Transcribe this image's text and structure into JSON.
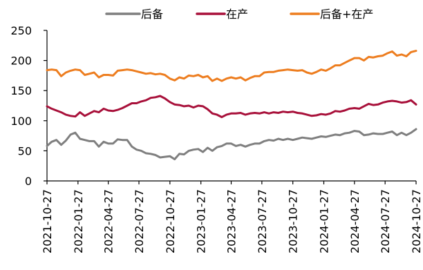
{
  "chart_data": {
    "type": "line",
    "title": "",
    "xlabel": "",
    "ylabel": "",
    "ylim": [
      0,
      250
    ],
    "yticks": [
      0,
      50,
      100,
      150,
      200,
      250
    ],
    "xlim": [
      "2021-10-27",
      "2024-10-27"
    ],
    "xticks": [
      "2021-10-27",
      "2022-01-27",
      "2022-04-27",
      "2022-07-27",
      "2022-10-27",
      "2023-01-27",
      "2023-04-27",
      "2023-07-27",
      "2023-10-27",
      "2024-01-27",
      "2024-04-27",
      "2024-07-27",
      "2024-10-27"
    ],
    "grid": false,
    "legend": "top",
    "series": [
      {
        "name": "后备",
        "color": "#7f7f7f",
        "points": [
          [
            "2021-10-27",
            58
          ],
          [
            "2021-11-10",
            65
          ],
          [
            "2021-11-24",
            68
          ],
          [
            "2021-12-08",
            60
          ],
          [
            "2021-12-22",
            67
          ],
          [
            "2022-01-05",
            77
          ],
          [
            "2022-01-19",
            80
          ],
          [
            "2022-02-02",
            70
          ],
          [
            "2022-02-16",
            68
          ],
          [
            "2022-03-02",
            66
          ],
          [
            "2022-03-16",
            66
          ],
          [
            "2022-03-30",
            57
          ],
          [
            "2022-04-13",
            65
          ],
          [
            "2022-04-27",
            62
          ],
          [
            "2022-05-11",
            62
          ],
          [
            "2022-05-25",
            69
          ],
          [
            "2022-06-08",
            68
          ],
          [
            "2022-06-22",
            68
          ],
          [
            "2022-07-06",
            57
          ],
          [
            "2022-07-20",
            52
          ],
          [
            "2022-08-03",
            50
          ],
          [
            "2022-08-17",
            46
          ],
          [
            "2022-08-31",
            45
          ],
          [
            "2022-09-14",
            43
          ],
          [
            "2022-09-28",
            39
          ],
          [
            "2022-10-12",
            40
          ],
          [
            "2022-10-27",
            41
          ],
          [
            "2022-11-10",
            36
          ],
          [
            "2022-11-24",
            45
          ],
          [
            "2022-12-08",
            44
          ],
          [
            "2022-12-22",
            50
          ],
          [
            "2023-01-05",
            52
          ],
          [
            "2023-01-19",
            53
          ],
          [
            "2023-02-02",
            48
          ],
          [
            "2023-02-16",
            55
          ],
          [
            "2023-03-02",
            50
          ],
          [
            "2023-03-16",
            56
          ],
          [
            "2023-03-30",
            58
          ],
          [
            "2023-04-13",
            62
          ],
          [
            "2023-04-27",
            62
          ],
          [
            "2023-05-11",
            58
          ],
          [
            "2023-05-25",
            60
          ],
          [
            "2023-06-08",
            57
          ],
          [
            "2023-06-22",
            60
          ],
          [
            "2023-07-06",
            62
          ],
          [
            "2023-07-20",
            62
          ],
          [
            "2023-08-03",
            66
          ],
          [
            "2023-08-17",
            68
          ],
          [
            "2023-08-31",
            67
          ],
          [
            "2023-09-14",
            70
          ],
          [
            "2023-09-28",
            68
          ],
          [
            "2023-10-12",
            70
          ],
          [
            "2023-10-27",
            68
          ],
          [
            "2023-11-10",
            70
          ],
          [
            "2023-11-24",
            72
          ],
          [
            "2023-12-08",
            71
          ],
          [
            "2023-12-22",
            70
          ],
          [
            "2024-01-05",
            72
          ],
          [
            "2024-01-19",
            74
          ],
          [
            "2024-02-02",
            73
          ],
          [
            "2024-02-16",
            75
          ],
          [
            "2024-03-01",
            77
          ],
          [
            "2024-03-15",
            76
          ],
          [
            "2024-03-29",
            79
          ],
          [
            "2024-04-12",
            80
          ],
          [
            "2024-04-27",
            83
          ],
          [
            "2024-05-11",
            82
          ],
          [
            "2024-05-25",
            76
          ],
          [
            "2024-06-08",
            77
          ],
          [
            "2024-06-22",
            79
          ],
          [
            "2024-07-06",
            78
          ],
          [
            "2024-07-20",
            78
          ],
          [
            "2024-08-03",
            80
          ],
          [
            "2024-08-17",
            82
          ],
          [
            "2024-08-31",
            76
          ],
          [
            "2024-09-14",
            80
          ],
          [
            "2024-09-28",
            76
          ],
          [
            "2024-10-12",
            80
          ],
          [
            "2024-10-27",
            86
          ]
        ]
      },
      {
        "name": "在产",
        "color": "#a8103a",
        "points": [
          [
            "2021-10-27",
            124
          ],
          [
            "2021-11-10",
            120
          ],
          [
            "2021-11-24",
            117
          ],
          [
            "2021-12-08",
            114
          ],
          [
            "2021-12-22",
            110
          ],
          [
            "2022-01-05",
            108
          ],
          [
            "2022-01-19",
            107
          ],
          [
            "2022-02-02",
            114
          ],
          [
            "2022-02-16",
            108
          ],
          [
            "2022-03-02",
            112
          ],
          [
            "2022-03-16",
            116
          ],
          [
            "2022-03-30",
            114
          ],
          [
            "2022-04-13",
            120
          ],
          [
            "2022-04-27",
            117
          ],
          [
            "2022-05-11",
            116
          ],
          [
            "2022-05-25",
            118
          ],
          [
            "2022-06-08",
            121
          ],
          [
            "2022-06-22",
            125
          ],
          [
            "2022-07-06",
            129
          ],
          [
            "2022-07-20",
            129
          ],
          [
            "2022-08-03",
            132
          ],
          [
            "2022-08-17",
            134
          ],
          [
            "2022-08-31",
            138
          ],
          [
            "2022-09-14",
            139
          ],
          [
            "2022-09-28",
            141
          ],
          [
            "2022-10-12",
            137
          ],
          [
            "2022-10-27",
            131
          ],
          [
            "2022-11-10",
            127
          ],
          [
            "2022-11-24",
            126
          ],
          [
            "2022-12-08",
            124
          ],
          [
            "2022-12-22",
            125
          ],
          [
            "2023-01-05",
            122
          ],
          [
            "2023-01-19",
            125
          ],
          [
            "2023-02-02",
            124
          ],
          [
            "2023-02-16",
            119
          ],
          [
            "2023-03-02",
            112
          ],
          [
            "2023-03-16",
            110
          ],
          [
            "2023-03-30",
            106
          ],
          [
            "2023-04-13",
            110
          ],
          [
            "2023-04-27",
            112
          ],
          [
            "2023-05-11",
            112
          ],
          [
            "2023-05-25",
            113
          ],
          [
            "2023-06-08",
            110
          ],
          [
            "2023-06-22",
            112
          ],
          [
            "2023-07-06",
            113
          ],
          [
            "2023-07-20",
            112
          ],
          [
            "2023-08-03",
            114
          ],
          [
            "2023-08-17",
            112
          ],
          [
            "2023-08-31",
            114
          ],
          [
            "2023-09-14",
            113
          ],
          [
            "2023-09-28",
            115
          ],
          [
            "2023-10-12",
            114
          ],
          [
            "2023-10-27",
            115
          ],
          [
            "2023-11-10",
            113
          ],
          [
            "2023-11-24",
            112
          ],
          [
            "2023-12-08",
            110
          ],
          [
            "2023-12-22",
            108
          ],
          [
            "2024-01-05",
            109
          ],
          [
            "2024-01-19",
            111
          ],
          [
            "2024-02-02",
            110
          ],
          [
            "2024-02-16",
            112
          ],
          [
            "2024-03-01",
            116
          ],
          [
            "2024-03-15",
            115
          ],
          [
            "2024-03-29",
            117
          ],
          [
            "2024-04-12",
            120
          ],
          [
            "2024-04-27",
            121
          ],
          [
            "2024-05-11",
            120
          ],
          [
            "2024-05-25",
            124
          ],
          [
            "2024-06-08",
            128
          ],
          [
            "2024-06-22",
            126
          ],
          [
            "2024-07-06",
            127
          ],
          [
            "2024-07-20",
            130
          ],
          [
            "2024-08-03",
            132
          ],
          [
            "2024-08-17",
            133
          ],
          [
            "2024-08-31",
            132
          ],
          [
            "2024-09-14",
            130
          ],
          [
            "2024-09-28",
            131
          ],
          [
            "2024-10-12",
            134
          ],
          [
            "2024-10-27",
            127
          ]
        ]
      },
      {
        "name": "后备+在产",
        "color": "#ed7d1f",
        "points": [
          [
            "2021-10-27",
            184
          ],
          [
            "2021-11-10",
            185
          ],
          [
            "2021-11-24",
            184
          ],
          [
            "2021-12-08",
            174
          ],
          [
            "2021-12-22",
            180
          ],
          [
            "2022-01-05",
            183
          ],
          [
            "2022-01-19",
            185
          ],
          [
            "2022-02-02",
            184
          ],
          [
            "2022-02-16",
            176
          ],
          [
            "2022-03-02",
            178
          ],
          [
            "2022-03-16",
            180
          ],
          [
            "2022-03-30",
            172
          ],
          [
            "2022-04-13",
            176
          ],
          [
            "2022-04-27",
            176
          ],
          [
            "2022-05-11",
            175
          ],
          [
            "2022-05-25",
            183
          ],
          [
            "2022-06-08",
            184
          ],
          [
            "2022-06-22",
            185
          ],
          [
            "2022-07-06",
            184
          ],
          [
            "2022-07-20",
            182
          ],
          [
            "2022-08-03",
            180
          ],
          [
            "2022-08-17",
            178
          ],
          [
            "2022-08-31",
            179
          ],
          [
            "2022-09-14",
            177
          ],
          [
            "2022-09-28",
            178
          ],
          [
            "2022-10-12",
            176
          ],
          [
            "2022-10-27",
            170
          ],
          [
            "2022-11-10",
            167
          ],
          [
            "2022-11-24",
            172
          ],
          [
            "2022-12-08",
            170
          ],
          [
            "2022-12-22",
            175
          ],
          [
            "2023-01-05",
            174
          ],
          [
            "2023-01-19",
            176
          ],
          [
            "2023-02-02",
            172
          ],
          [
            "2023-02-16",
            174
          ],
          [
            "2023-03-02",
            166
          ],
          [
            "2023-03-16",
            170
          ],
          [
            "2023-03-30",
            166
          ],
          [
            "2023-04-13",
            170
          ],
          [
            "2023-04-27",
            172
          ],
          [
            "2023-05-11",
            170
          ],
          [
            "2023-05-25",
            172
          ],
          [
            "2023-06-08",
            167
          ],
          [
            "2023-06-22",
            171
          ],
          [
            "2023-07-06",
            174
          ],
          [
            "2023-07-20",
            174
          ],
          [
            "2023-08-03",
            180
          ],
          [
            "2023-08-17",
            181
          ],
          [
            "2023-08-31",
            181
          ],
          [
            "2023-09-14",
            183
          ],
          [
            "2023-09-28",
            184
          ],
          [
            "2023-10-12",
            185
          ],
          [
            "2023-10-27",
            184
          ],
          [
            "2023-11-10",
            183
          ],
          [
            "2023-11-24",
            184
          ],
          [
            "2023-12-08",
            180
          ],
          [
            "2023-12-22",
            178
          ],
          [
            "2024-01-05",
            181
          ],
          [
            "2024-01-19",
            185
          ],
          [
            "2024-02-02",
            183
          ],
          [
            "2024-02-16",
            187
          ],
          [
            "2024-03-01",
            192
          ],
          [
            "2024-03-15",
            192
          ],
          [
            "2024-03-29",
            196
          ],
          [
            "2024-04-12",
            200
          ],
          [
            "2024-04-27",
            204
          ],
          [
            "2024-05-11",
            204
          ],
          [
            "2024-05-25",
            200
          ],
          [
            "2024-06-08",
            206
          ],
          [
            "2024-06-22",
            205
          ],
          [
            "2024-07-06",
            207
          ],
          [
            "2024-07-20",
            208
          ],
          [
            "2024-08-03",
            212
          ],
          [
            "2024-08-17",
            215
          ],
          [
            "2024-08-31",
            208
          ],
          [
            "2024-09-14",
            210
          ],
          [
            "2024-09-28",
            207
          ],
          [
            "2024-10-12",
            214
          ],
          [
            "2024-10-27",
            216
          ]
        ]
      }
    ]
  }
}
